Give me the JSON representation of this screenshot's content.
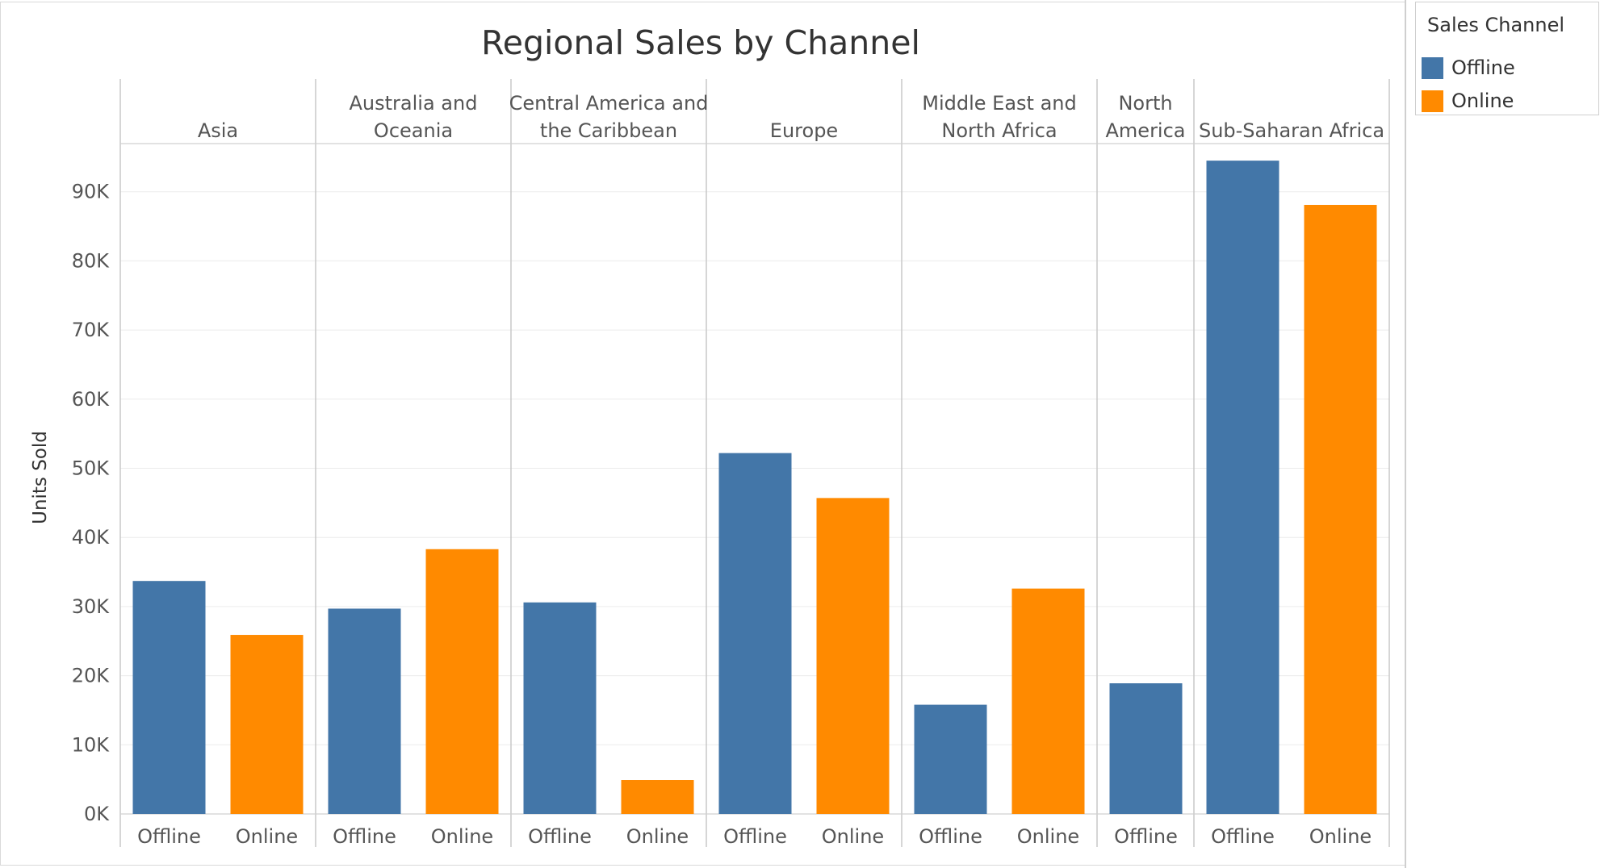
{
  "chart_data": {
    "type": "bar",
    "title": "Regional Sales by Channel",
    "ylabel": "Units Sold",
    "ylim": [
      0,
      100000
    ],
    "yticks": [
      0,
      10000,
      20000,
      30000,
      40000,
      50000,
      60000,
      70000,
      80000,
      90000
    ],
    "ytick_labels": [
      "0K",
      "10K",
      "20K",
      "30K",
      "40K",
      "50K",
      "60K",
      "70K",
      "80K",
      "90K"
    ],
    "grid": true,
    "legend_position": "top-right",
    "legend_title": "Sales Channel",
    "groups": [
      {
        "region": [
          "Asia"
        ],
        "bars": [
          {
            "channel": "Offline",
            "value": 33700
          },
          {
            "channel": "Online",
            "value": 25900
          }
        ]
      },
      {
        "region": [
          "Australia and",
          "Oceania"
        ],
        "bars": [
          {
            "channel": "Offline",
            "value": 29700
          },
          {
            "channel": "Online",
            "value": 38300
          }
        ]
      },
      {
        "region": [
          "Central America and",
          "the Caribbean"
        ],
        "bars": [
          {
            "channel": "Offline",
            "value": 30600
          },
          {
            "channel": "Online",
            "value": 4900
          }
        ]
      },
      {
        "region": [
          "Europe"
        ],
        "bars": [
          {
            "channel": "Offline",
            "value": 52200
          },
          {
            "channel": "Online",
            "value": 45700
          }
        ]
      },
      {
        "region": [
          "Middle East and",
          "North Africa"
        ],
        "bars": [
          {
            "channel": "Offline",
            "value": 15800
          },
          {
            "channel": "Online",
            "value": 32600
          }
        ]
      },
      {
        "region": [
          "North",
          "America"
        ],
        "bars": [
          {
            "channel": "Offline",
            "value": 18900
          }
        ]
      },
      {
        "region": [
          "Sub-Saharan Africa"
        ],
        "bars": [
          {
            "channel": "Offline",
            "value": 94500
          },
          {
            "channel": "Online",
            "value": 88100
          }
        ]
      }
    ],
    "series": [
      {
        "name": "Offline",
        "color": "#4376a8"
      },
      {
        "name": "Online",
        "color": "#ff8a00"
      }
    ]
  }
}
